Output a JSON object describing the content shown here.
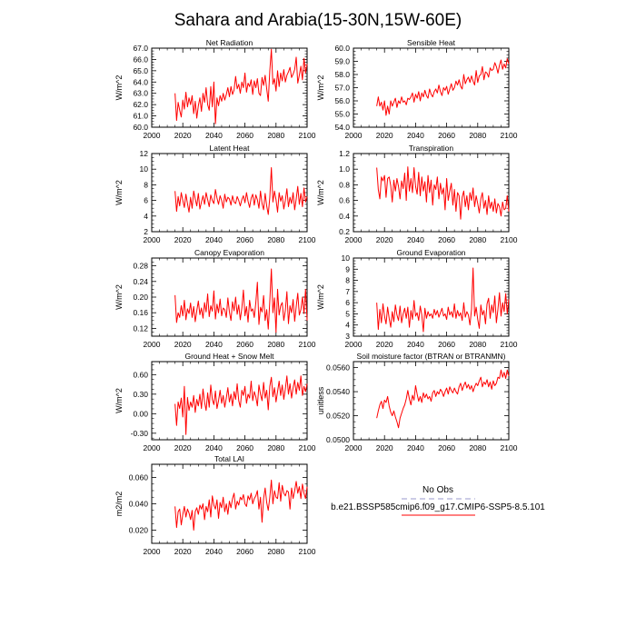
{
  "figure": {
    "title": "Sahara and Arabia(15-30N,15W-60E)"
  },
  "legend": {
    "obs_label": "No Obs",
    "model_label": "b.e21.BSSP585cmip6.f09_g17.CMIP6-SSP5-8.5.101",
    "obs_color": "#9999cc",
    "model_color": "#ff0000"
  },
  "chart_data": [
    {
      "type": "line",
      "title": "Net Radiation",
      "xlabel": "",
      "ylabel": "W/m^2",
      "xlim": [
        2000,
        2100
      ],
      "ylim": [
        60.0,
        67.0
      ],
      "x_ticks": [
        "2000",
        "2020",
        "2040",
        "2060",
        "2080",
        "2100"
      ],
      "y_ticks": [
        "60.0",
        "61.0",
        "62.0",
        "63.0",
        "64.0",
        "65.0",
        "66.0",
        "67.0"
      ],
      "series": [
        {
          "x_start": 2015,
          "values": [
            63.0,
            60.6,
            62.2,
            61.5,
            60.9,
            62.4,
            61.6,
            63.1,
            61.8,
            62.6,
            62.0,
            62.8,
            61.2,
            62.3,
            60.8,
            61.9,
            62.6,
            61.4,
            63.0,
            62.2,
            63.5,
            62.0,
            61.5,
            63.6,
            61.8,
            64.0,
            60.3,
            62.6,
            61.9,
            62.8,
            62.3,
            63.0,
            62.4,
            62.9,
            63.5,
            62.7,
            63.6,
            62.9,
            63.3,
            64.5,
            63.4,
            63.8,
            63.0,
            64.0,
            63.5,
            64.8,
            63.1,
            63.9,
            63.6,
            64.2,
            62.9,
            64.1,
            63.5,
            64.3,
            63.0,
            62.8,
            64.4,
            63.7,
            64.6,
            63.4,
            62.3,
            65.0,
            66.9,
            63.8,
            64.3,
            63.2,
            65.0,
            63.6,
            64.8,
            64.1,
            65.1,
            64.0,
            64.6,
            64.9,
            65.3,
            64.4,
            64.7,
            65.1,
            66.2,
            63.9,
            64.6,
            65.4,
            64.2,
            66.1,
            64.8,
            65.6
          ]
        }
      ]
    },
    {
      "type": "line",
      "title": "Sensible Heat",
      "xlabel": "",
      "ylabel": "W/m^2",
      "xlim": [
        2000,
        2100
      ],
      "ylim": [
        54.0,
        60.0
      ],
      "x_ticks": [
        "2000",
        "2020",
        "2040",
        "2060",
        "2080",
        "2100"
      ],
      "y_ticks": [
        "54.0",
        "55.0",
        "56.0",
        "57.0",
        "58.0",
        "59.0",
        "60.0"
      ],
      "series": [
        {
          "x_start": 2015,
          "values": [
            55.6,
            56.3,
            55.6,
            55.9,
            55.3,
            56.0,
            54.9,
            55.6,
            55.0,
            56.0,
            55.6,
            55.9,
            56.2,
            55.5,
            56.0,
            55.8,
            56.3,
            55.9,
            56.0,
            55.7,
            56.2,
            56.1,
            56.3,
            56.6,
            55.9,
            56.5,
            56.2,
            56.7,
            56.0,
            56.6,
            56.3,
            56.8,
            56.4,
            56.2,
            56.9,
            56.5,
            56.3,
            56.7,
            56.9,
            56.6,
            57.2,
            56.7,
            56.4,
            57.0,
            56.8,
            57.1,
            56.5,
            56.9,
            57.3,
            56.8,
            57.0,
            57.5,
            57.2,
            57.6,
            57.1,
            56.9,
            58.0,
            57.3,
            57.6,
            57.8,
            57.4,
            57.9,
            57.5,
            57.2,
            58.3,
            57.4,
            57.9,
            58.0,
            58.6,
            57.6,
            58.2,
            58.1,
            57.8,
            58.5,
            58.3,
            58.4,
            58.9,
            58.6,
            58.1,
            58.7,
            59.1,
            58.4,
            58.8,
            58.5,
            59.2,
            58.8
          ]
        }
      ]
    },
    {
      "type": "line",
      "title": "Latent Heat",
      "xlabel": "",
      "ylabel": "W/m^2",
      "xlim": [
        2000,
        2100
      ],
      "ylim": [
        2,
        12
      ],
      "x_ticks": [
        "2000",
        "2020",
        "2040",
        "2060",
        "2080",
        "2100"
      ],
      "y_ticks": [
        "2",
        "4",
        "6",
        "8",
        "10",
        "12"
      ],
      "series": [
        {
          "x_start": 2015,
          "values": [
            7.2,
            4.6,
            6.5,
            5.3,
            7.0,
            6.0,
            5.1,
            6.8,
            5.6,
            4.5,
            6.4,
            5.0,
            7.2,
            6.2,
            5.3,
            6.9,
            4.9,
            5.8,
            6.6,
            5.5,
            7.0,
            6.1,
            5.2,
            6.7,
            6.0,
            5.6,
            7.4,
            6.3,
            5.5,
            6.6,
            6.0,
            5.0,
            6.8,
            5.8,
            6.4,
            6.2,
            5.4,
            6.6,
            5.8,
            5.6,
            6.5,
            6.0,
            5.3,
            6.1,
            6.6,
            5.7,
            7.0,
            5.9,
            5.1,
            6.3,
            6.8,
            5.4,
            6.7,
            6.1,
            5.0,
            7.2,
            5.6,
            4.8,
            6.9,
            5.3,
            4.2,
            6.4,
            10.2,
            5.8,
            7.2,
            6.1,
            4.5,
            7.0,
            5.9,
            6.6,
            4.9,
            6.0,
            7.5,
            5.2,
            6.4,
            5.6,
            7.0,
            4.8,
            6.2,
            7.8,
            5.5,
            6.9,
            5.2,
            7.6,
            5.8,
            6.5
          ]
        }
      ]
    },
    {
      "type": "line",
      "title": "Transpiration",
      "xlabel": "",
      "ylabel": "W/m^2",
      "xlim": [
        2000,
        2100
      ],
      "ylim": [
        0.2,
        1.2
      ],
      "x_ticks": [
        "2000",
        "2020",
        "2040",
        "2060",
        "2080",
        "2100"
      ],
      "y_ticks": [
        "0.2",
        "0.4",
        "0.6",
        "0.8",
        "1.0",
        "1.2"
      ],
      "series": [
        {
          "x_start": 2015,
          "values": [
            1.02,
            0.74,
            0.62,
            0.9,
            0.85,
            0.92,
            0.64,
            0.88,
            0.9,
            0.79,
            0.58,
            0.86,
            0.72,
            0.88,
            0.78,
            0.62,
            0.85,
            0.75,
            0.95,
            0.6,
            1.03,
            0.72,
            0.88,
            0.7,
            1.02,
            0.78,
            0.68,
            0.96,
            0.66,
            0.9,
            0.72,
            0.84,
            0.58,
            0.92,
            0.7,
            0.86,
            0.54,
            0.8,
            0.74,
            0.9,
            0.62,
            0.82,
            0.68,
            0.76,
            0.48,
            0.88,
            0.6,
            0.72,
            0.82,
            0.54,
            0.74,
            0.46,
            0.7,
            0.66,
            0.36,
            0.64,
            0.72,
            0.52,
            0.66,
            0.48,
            0.7,
            0.6,
            0.76,
            0.52,
            0.66,
            0.56,
            0.44,
            0.62,
            0.7,
            0.5,
            0.6,
            0.42,
            0.66,
            0.5,
            0.58,
            0.46,
            0.62,
            0.44,
            0.56,
            0.52,
            0.4,
            0.58,
            0.48,
            0.5,
            0.66,
            0.46
          ]
        }
      ]
    },
    {
      "type": "line",
      "title": "Canopy Evaporation",
      "xlabel": "",
      "ylabel": "W/m^2",
      "xlim": [
        2000,
        2100
      ],
      "ylim": [
        0.1,
        0.3
      ],
      "x_ticks": [
        "2000",
        "2020",
        "2040",
        "2060",
        "2080",
        "2100"
      ],
      "y_ticks": [
        "0.12",
        "0.16",
        "0.20",
        "0.24",
        "0.28"
      ],
      "series": [
        {
          "x_start": 2015,
          "values": [
            0.205,
            0.135,
            0.16,
            0.148,
            0.178,
            0.152,
            0.192,
            0.142,
            0.17,
            0.158,
            0.185,
            0.148,
            0.176,
            0.137,
            0.165,
            0.19,
            0.155,
            0.172,
            0.146,
            0.186,
            0.162,
            0.208,
            0.15,
            0.178,
            0.164,
            0.216,
            0.144,
            0.182,
            0.16,
            0.195,
            0.152,
            0.172,
            0.168,
            0.148,
            0.198,
            0.162,
            0.14,
            0.188,
            0.165,
            0.2,
            0.156,
            0.18,
            0.142,
            0.172,
            0.218,
            0.152,
            0.176,
            0.136,
            0.192,
            0.164,
            0.17,
            0.148,
            0.186,
            0.238,
            0.13,
            0.174,
            0.162,
            0.204,
            0.14,
            0.168,
            0.118,
            0.19,
            0.272,
            0.16,
            0.198,
            0.11,
            0.22,
            0.154,
            0.178,
            0.186,
            0.14,
            0.166,
            0.214,
            0.132,
            0.178,
            0.16,
            0.194,
            0.138,
            0.176,
            0.21,
            0.154,
            0.168,
            0.2,
            0.158,
            0.22,
            0.14
          ]
        }
      ]
    },
    {
      "type": "line",
      "title": "Ground Evaporation",
      "xlabel": "",
      "ylabel": "W/m^2",
      "xlim": [
        2000,
        2100
      ],
      "ylim": [
        3,
        10
      ],
      "x_ticks": [
        "2000",
        "2020",
        "2040",
        "2060",
        "2080",
        "2100"
      ],
      "y_ticks": [
        "3",
        "4",
        "5",
        "6",
        "7",
        "8",
        "9",
        "10"
      ],
      "series": [
        {
          "x_start": 2015,
          "values": [
            6.0,
            3.6,
            5.4,
            4.2,
            5.9,
            4.8,
            4.1,
            5.6,
            4.6,
            3.8,
            5.2,
            4.3,
            5.8,
            4.9,
            4.4,
            5.7,
            4.2,
            5.0,
            5.5,
            4.6,
            5.6,
            3.8,
            5.3,
            4.5,
            6.2,
            4.8,
            5.1,
            4.4,
            5.7,
            4.9,
            3.4,
            5.5,
            4.6,
            5.2,
            4.8,
            5.0,
            4.6,
            5.4,
            4.9,
            5.3,
            4.7,
            5.1,
            5.5,
            4.8,
            5.0,
            4.5,
            5.6,
            4.9,
            5.2,
            4.7,
            5.9,
            4.6,
            5.3,
            4.8,
            5.1,
            4.4,
            6.0,
            4.7,
            5.2,
            4.9,
            4.0,
            5.4,
            9.1,
            4.8,
            5.6,
            4.5,
            3.7,
            5.8,
            4.9,
            5.3,
            4.1,
            5.9,
            6.4,
            4.6,
            5.8,
            5.1,
            6.6,
            4.2,
            5.4,
            6.9,
            4.8,
            6.0,
            5.2,
            6.8,
            5.0,
            6.3
          ]
        }
      ]
    },
    {
      "type": "line",
      "title": "Ground Heat + Snow Melt",
      "xlabel": "",
      "ylabel": "W/m^2",
      "xlim": [
        2000,
        2100
      ],
      "ylim": [
        -0.4,
        0.8
      ],
      "x_ticks": [
        "2000",
        "2020",
        "2040",
        "2060",
        "2080",
        "2100"
      ],
      "y_ticks": [
        "-0.30",
        "0.00",
        "0.30",
        "0.60"
      ],
      "series": [
        {
          "x_start": 2015,
          "values": [
            0.15,
            -0.18,
            0.18,
            0.08,
            0.24,
            -0.05,
            0.42,
            -0.32,
            0.25,
            0.05,
            0.18,
            0.1,
            0.28,
            0.02,
            0.22,
            0.12,
            0.3,
            0.08,
            0.38,
            0.18,
            0.05,
            0.32,
            0.1,
            0.44,
            0.22,
            0.14,
            0.35,
            0.08,
            0.2,
            0.36,
            0.16,
            0.28,
            0.1,
            0.24,
            0.4,
            0.18,
            0.3,
            0.12,
            0.34,
            0.22,
            0.46,
            0.2,
            0.1,
            0.36,
            0.28,
            0.42,
            0.16,
            0.3,
            0.24,
            0.5,
            0.2,
            0.34,
            0.26,
            0.12,
            0.44,
            0.3,
            0.2,
            0.48,
            0.24,
            0.36,
            0.06,
            0.42,
            0.56,
            0.26,
            0.4,
            0.18,
            0.34,
            0.5,
            0.28,
            0.44,
            0.22,
            0.38,
            0.58,
            0.3,
            0.46,
            0.24,
            0.4,
            0.52,
            0.3,
            0.48,
            0.36,
            0.58,
            0.28,
            0.42,
            0.34,
            0.46
          ]
        }
      ]
    },
    {
      "type": "line",
      "title": "Soil moisture factor (BTRAN or BTRANMN)",
      "xlabel": "",
      "ylabel": "unitless",
      "xlim": [
        2000,
        2100
      ],
      "ylim": [
        0.05,
        0.0565
      ],
      "x_ticks": [
        "2000",
        "2020",
        "2040",
        "2060",
        "2080",
        "2100"
      ],
      "y_ticks": [
        "0.0500",
        "0.0520",
        "0.0540",
        "0.0560"
      ],
      "series": [
        {
          "x_start": 2015,
          "values": [
            0.0518,
            0.0524,
            0.0529,
            0.0532,
            0.0526,
            0.0533,
            0.0531,
            0.0536,
            0.0528,
            0.0523,
            0.052,
            0.0524,
            0.0519,
            0.0515,
            0.051,
            0.0518,
            0.0522,
            0.0526,
            0.0529,
            0.0534,
            0.0541,
            0.0534,
            0.0529,
            0.0537,
            0.0533,
            0.0545,
            0.0538,
            0.0532,
            0.0536,
            0.0531,
            0.0539,
            0.0535,
            0.0538,
            0.0534,
            0.0536,
            0.0532,
            0.0539,
            0.0541,
            0.0536,
            0.054,
            0.0538,
            0.0542,
            0.054,
            0.0536,
            0.054,
            0.0543,
            0.0538,
            0.0544,
            0.0541,
            0.0539,
            0.0543,
            0.054,
            0.0538,
            0.0544,
            0.0547,
            0.0541,
            0.0545,
            0.0548,
            0.0543,
            0.0546,
            0.0542,
            0.0545,
            0.054,
            0.0544,
            0.0547,
            0.0545,
            0.0549,
            0.0552,
            0.0544,
            0.0548,
            0.0546,
            0.055,
            0.0544,
            0.0548,
            0.0542,
            0.0549,
            0.0545,
            0.0547,
            0.0552,
            0.0551,
            0.0558,
            0.0552,
            0.0556,
            0.0551,
            0.0558,
            0.0553
          ]
        }
      ]
    },
    {
      "type": "line",
      "title": "Total LAI",
      "xlabel": "",
      "ylabel": "m2/m2",
      "xlim": [
        2000,
        2100
      ],
      "ylim": [
        0.01,
        0.07
      ],
      "x_ticks": [
        "2000",
        "2020",
        "2040",
        "2060",
        "2080",
        "2100"
      ],
      "y_ticks": [
        "0.020",
        "0.040",
        "0.060"
      ],
      "series": [
        {
          "x_start": 2015,
          "values": [
            0.038,
            0.022,
            0.034,
            0.036,
            0.024,
            0.032,
            0.038,
            0.03,
            0.036,
            0.033,
            0.028,
            0.035,
            0.02,
            0.034,
            0.037,
            0.032,
            0.039,
            0.036,
            0.04,
            0.028,
            0.038,
            0.034,
            0.043,
            0.03,
            0.046,
            0.039,
            0.036,
            0.043,
            0.029,
            0.041,
            0.037,
            0.045,
            0.034,
            0.04,
            0.032,
            0.042,
            0.037,
            0.044,
            0.048,
            0.036,
            0.042,
            0.039,
            0.045,
            0.043,
            0.047,
            0.04,
            0.038,
            0.046,
            0.043,
            0.048,
            0.04,
            0.044,
            0.046,
            0.05,
            0.036,
            0.045,
            0.026,
            0.044,
            0.052,
            0.041,
            0.035,
            0.045,
            0.058,
            0.04,
            0.05,
            0.045,
            0.044,
            0.056,
            0.042,
            0.054,
            0.048,
            0.046,
            0.05,
            0.049,
            0.036,
            0.052,
            0.044,
            0.05,
            0.057,
            0.048,
            0.053,
            0.044,
            0.055,
            0.048,
            0.044,
            0.053
          ]
        }
      ]
    }
  ]
}
